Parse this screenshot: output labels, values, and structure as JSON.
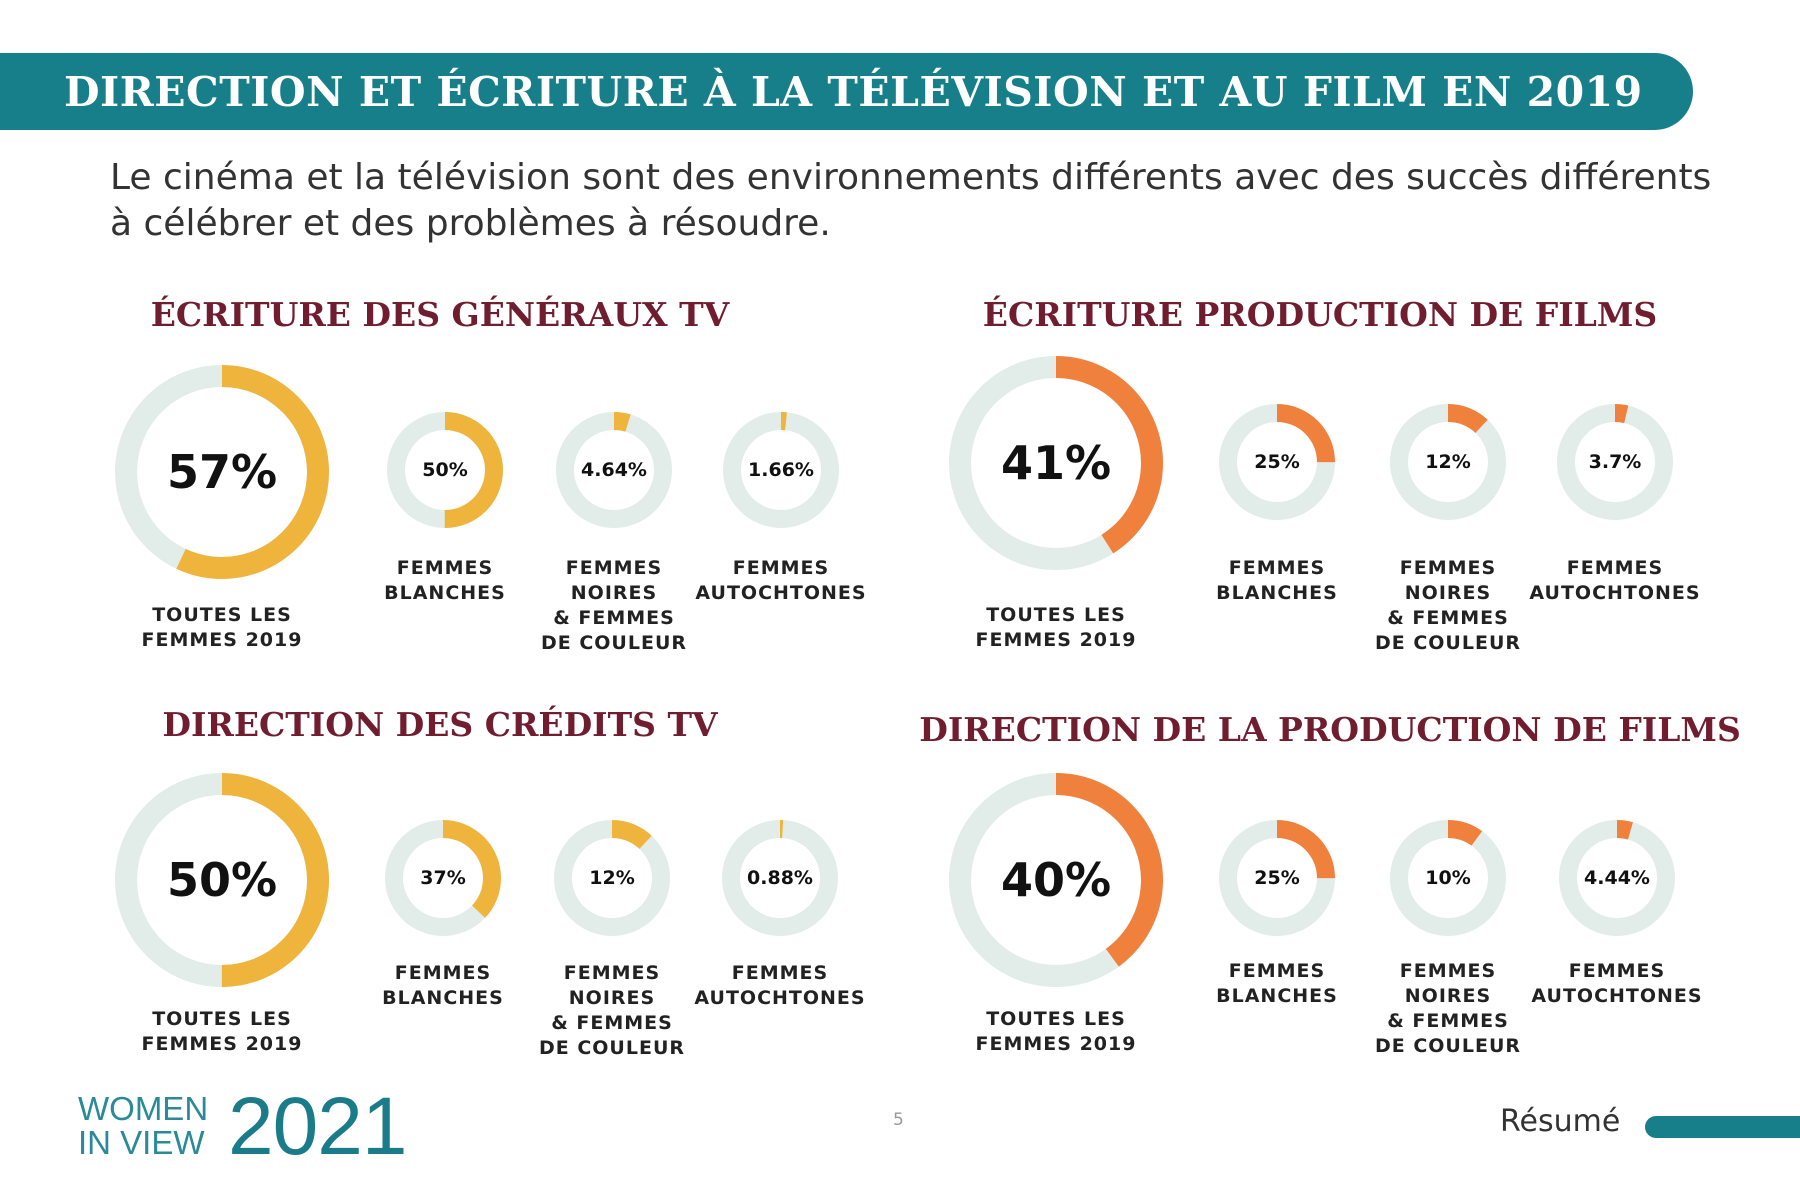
{
  "header": {
    "title": "DIRECTION ET ÉCRITURE À LA TÉLÉVISION ET AU FILM EN 2019"
  },
  "intro": {
    "line1": "Le cinéma et la télévision sont des environnements différents avec des succès différents",
    "line2": "à célébrer et des problèmes à résoudre."
  },
  "colors": {
    "banner": "#177f8a",
    "tv_accent": "#efb43c",
    "film_accent": "#f0813d",
    "track": "#e2ece8",
    "panel_title": "#701d30"
  },
  "labels": {
    "toutes": [
      "TOUTES LES",
      "FEMMES 2019"
    ],
    "blanches": [
      "FEMMES",
      "BLANCHES"
    ],
    "noires": [
      "FEMMES",
      "NOIRES",
      "& FEMMES",
      "DE COULEUR"
    ],
    "autochtones": [
      "FEMMES",
      "AUTOCHTONES"
    ]
  },
  "chart_data": [
    {
      "type": "donut",
      "title": "ÉCRITURE DES GÉNÉRAUX TV",
      "categories": [
        "TOUTES LES FEMMES 2019",
        "FEMMES BLANCHES",
        "FEMMES NOIRES & FEMMES DE COULEUR",
        "FEMMES AUTOCHTONES"
      ],
      "values": [
        57,
        50,
        4.64,
        1.66
      ],
      "value_labels": [
        "57%",
        "50%",
        "4.64%",
        "1.66%"
      ],
      "color": "#efb43c"
    },
    {
      "type": "donut",
      "title": "ÉCRITURE PRODUCTION DE FILMS",
      "categories": [
        "TOUTES LES FEMMES 2019",
        "FEMMES BLANCHES",
        "FEMMES NOIRES & FEMMES DE COULEUR",
        "FEMMES AUTOCHTONES"
      ],
      "values": [
        41,
        25,
        12,
        3.7
      ],
      "value_labels": [
        "41%",
        "25%",
        "12%",
        "3.7%"
      ],
      "color": "#f0813d"
    },
    {
      "type": "donut",
      "title": "DIRECTION DES CRÉDITS TV",
      "categories": [
        "TOUTES LES FEMMES 2019",
        "FEMMES BLANCHES",
        "FEMMES NOIRES & FEMMES DE COULEUR",
        "FEMMES AUTOCHTONES"
      ],
      "values": [
        50,
        37,
        12,
        0.88
      ],
      "value_labels": [
        "50%",
        "37%",
        "12%",
        "0.88%"
      ],
      "color": "#efb43c"
    },
    {
      "type": "donut",
      "title": "DIRECTION DE LA PRODUCTION DE FILMS",
      "categories": [
        "TOUTES LES FEMMES 2019",
        "FEMMES BLANCHES",
        "FEMMES NOIRES & FEMMES DE COULEUR",
        "FEMMES AUTOCHTONES"
      ],
      "values": [
        40,
        25,
        10,
        4.44
      ],
      "value_labels": [
        "40%",
        "25%",
        "10%",
        "4.44%"
      ],
      "color": "#f0813d"
    }
  ],
  "footer": {
    "logo_line1": "WOMEN",
    "logo_line2": "IN VIEW",
    "logo_year": "2021",
    "page_number": "5",
    "resume_label": "Résumé"
  }
}
